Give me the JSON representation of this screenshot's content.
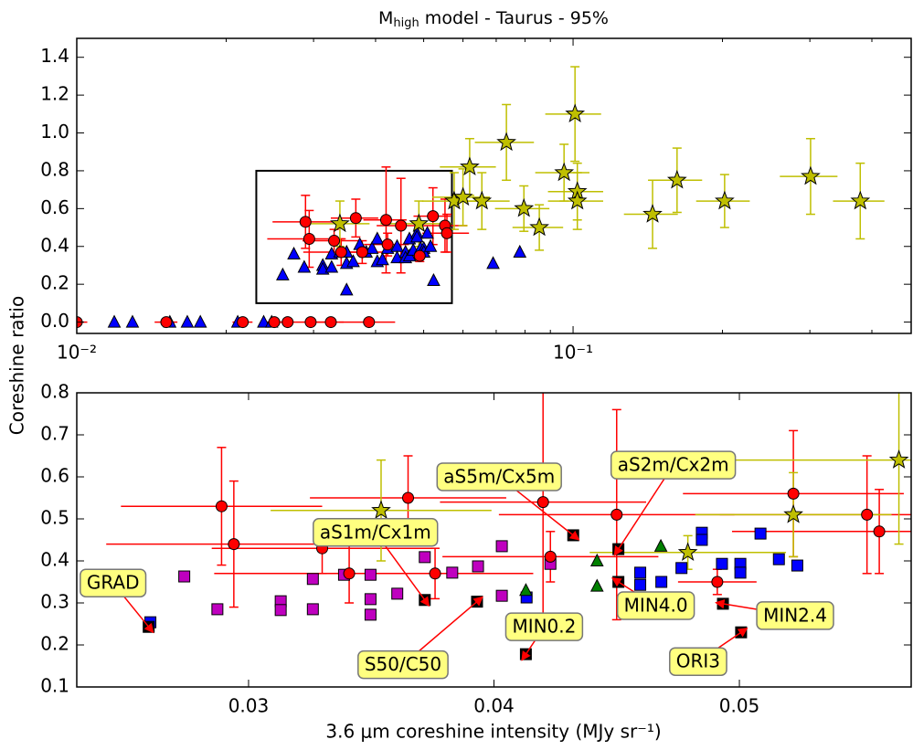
{
  "chart_data": [
    {
      "type": "scatter",
      "title": "M",
      "title_subscript": "high",
      "title_suffix": " model - Taurus - 95%",
      "ylabel": "Coreshine ratio",
      "log_x": true,
      "xlim": [
        0.01,
        0.48
      ],
      "ylim": [
        -0.06,
        1.5
      ],
      "xticks": [
        {
          "value": 0.01,
          "label": "10⁻²"
        },
        {
          "value": 0.1,
          "label": "10⁻¹"
        }
      ],
      "xminorticks": [
        0.02,
        0.03,
        0.04,
        0.05,
        0.06,
        0.07,
        0.08,
        0.09,
        0.2,
        0.3,
        0.4
      ],
      "yticks": [
        {
          "value": 0,
          "label": "0.0"
        },
        0.2,
        0.4,
        0.6,
        0.8,
        {
          "value": 1,
          "label": "1.0"
        },
        1.2,
        1.4
      ],
      "series": [
        {
          "marker": "triangle",
          "color": "#0000ff",
          "x": [
            0.0119,
            0.01295,
            0.0154,
            0.0167,
            0.01774,
            0.0211,
            0.0238,
            0.0247,
            0.026,
            0.02738,
            0.02873,
            0.03131,
            0.03131,
            0.03262,
            0.03262,
            0.03389,
            0.03497,
            0.03497,
            0.03497,
            0.03606,
            0.03718,
            0.0383,
            0.03935,
            0.04032,
            0.04032,
            0.0413,
            0.0423,
            0.0442,
            0.0442,
            0.04596,
            0.04596,
            0.04682,
            0.0468,
            0.04764,
            0.04847,
            0.04847,
            0.04929,
            0.05004,
            0.05004,
            0.05086,
            0.05161,
            0.05236,
            0.069,
            0.0781
          ],
          "values": [
            0,
            0,
            0,
            0,
            0,
            0,
            0,
            0,
            0.25,
            0.36,
            0.29,
            0.3,
            0.28,
            0.36,
            0.29,
            0.37,
            0.37,
            0.31,
            0.17,
            0.32,
            0.41,
            0.37,
            0.39,
            0.44,
            0.32,
            0.33,
            0.39,
            0.4,
            0.34,
            0.37,
            0.34,
            0.35,
            0.44,
            0.38,
            0.47,
            0.45,
            0.39,
            0.39,
            0.37,
            0.47,
            0.4,
            0.22,
            0.31,
            0.37
          ]
        },
        {
          "marker": "circle",
          "color": "#ff0000",
          "x": [
            0.01,
            0.01515,
            0.0216,
            0.025,
            0.0266,
            0.0296,
            0.0325,
            0.0388,
            0.0289,
            0.0294,
            0.033,
            0.0341,
            0.0365,
            0.0376,
            0.042,
            0.0423,
            0.045,
            0.0522,
            0.0552,
            0.0557,
            0.0491
          ],
          "values": [
            0,
            0,
            0,
            0,
            0,
            0,
            0,
            0,
            0.53,
            0.44,
            0.43,
            0.37,
            0.55,
            0.37,
            0.54,
            0.41,
            0.51,
            0.56,
            0.51,
            0.47,
            0.35
          ],
          "xerr": [
            0.0005,
            0.0008,
            0.001,
            0.001,
            0.001,
            0.002,
            0.002,
            0.005,
            0.0041,
            0.0052,
            0.0045,
            0.0055,
            0.004,
            0.004,
            0.0042,
            0.0044,
            0.0048,
            0.0045,
            0.006,
            0.006,
            0.0016
          ],
          "yerr": [
            0,
            0,
            0,
            0,
            0,
            0,
            0,
            0,
            0.14,
            0.15,
            0.06,
            0.07,
            0.1,
            0.06,
            0.28,
            0.06,
            0.25,
            0.15,
            0.14,
            0.1,
            0.03
          ]
        },
        {
          "marker": "star",
          "color": "#bfbf00",
          "x": [
            0.0339,
            0.0489,
            0.0576,
            0.06,
            0.0619,
            0.0655,
            0.0734,
            0.0796,
            0.0855,
            0.0959,
            0.1009,
            0.102,
            0.102,
            0.1446,
            0.162,
            0.202,
            0.301,
            0.379
          ],
          "values": [
            0.52,
            0.52,
            0.64,
            0.66,
            0.82,
            0.64,
            0.95,
            0.6,
            0.5,
            0.79,
            1.1,
            0.69,
            0.64,
            0.57,
            0.75,
            0.64,
            0.77,
            0.64
          ],
          "xerr": [
            0.005,
            0.008,
            0.008,
            0.008,
            0.008,
            0.009,
            0.01,
            0.01,
            0.01,
            0.012,
            0.013,
            0.013,
            0.013,
            0.018,
            0.02,
            0.025,
            0.04,
            0.045
          ],
          "yerr": [
            0.12,
            0.12,
            0.15,
            0.15,
            0.15,
            0.15,
            0.2,
            0.12,
            0.12,
            0.15,
            0.25,
            0.15,
            0.15,
            0.18,
            0.17,
            0.14,
            0.2,
            0.2
          ]
        }
      ]
    },
    {
      "type": "scatter",
      "xlabel": "3.6 μm coreshine intensity (MJy sr⁻¹)",
      "xlim": [
        0.023,
        0.057
      ],
      "ylim": [
        0.1,
        0.8
      ],
      "xticks": [
        0.03,
        0.04,
        0.05
      ],
      "yticks": [
        0.1,
        0.2,
        0.3,
        0.4,
        0.5,
        0.6,
        0.7,
        0.8
      ],
      "series": [
        {
          "marker": "square",
          "color": "#bf00bf",
          "x": [
            0.02738,
            0.02873,
            0.03131,
            0.03131,
            0.03262,
            0.03262,
            0.03389,
            0.03497,
            0.03497,
            0.03497,
            0.03606,
            0.03718,
            0.0383,
            0.03935,
            0.04032,
            0.04032,
            0.0423
          ],
          "values": [
            0.363,
            0.285,
            0.304,
            0.283,
            0.357,
            0.285,
            0.367,
            0.367,
            0.309,
            0.272,
            0.322,
            0.409,
            0.372,
            0.387,
            0.435,
            0.317,
            0.393
          ]
        },
        {
          "marker": "square",
          "color": "#0000ff",
          "x": [
            0.026,
            0.04133,
            0.04596,
            0.04596,
            0.04682,
            0.04764,
            0.04847,
            0.04847,
            0.04929,
            0.05004,
            0.05004,
            0.05086,
            0.05161,
            0.05236
          ],
          "values": [
            0.254,
            0.313,
            0.372,
            0.343,
            0.35,
            0.383,
            0.467,
            0.45,
            0.393,
            0.393,
            0.372,
            0.465,
            0.404,
            0.389
          ]
        },
        {
          "marker": "triangle",
          "color": "#008000",
          "x": [
            0.0413,
            0.0442,
            0.0442,
            0.0468
          ],
          "values": [
            0.33,
            0.4,
            0.34,
            0.435
          ]
        },
        {
          "marker": "circle",
          "color": "#ff0000",
          "x": [
            0.0289,
            0.0294,
            0.033,
            0.0341,
            0.0365,
            0.0376,
            0.042,
            0.0423,
            0.045,
            0.0522,
            0.0552,
            0.0557,
            0.0491
          ],
          "values": [
            0.53,
            0.44,
            0.43,
            0.37,
            0.55,
            0.37,
            0.54,
            0.41,
            0.51,
            0.56,
            0.51,
            0.47,
            0.35
          ],
          "xerr": [
            0.0041,
            0.0052,
            0.0045,
            0.0055,
            0.004,
            0.004,
            0.0042,
            0.0044,
            0.0048,
            0.0045,
            0.006,
            0.006,
            0.0016
          ],
          "yerr": [
            0.14,
            0.15,
            0.06,
            0.07,
            0.1,
            0.06,
            0.28,
            0.06,
            0.25,
            0.15,
            0.14,
            0.1,
            0.03
          ]
        },
        {
          "marker": "star",
          "color": "#bfbf00",
          "x": [
            0.0354,
            0.0479,
            0.0522,
            0.0565
          ],
          "values": [
            0.52,
            0.42,
            0.51,
            0.64
          ],
          "xerr": [
            0.0045,
            0.004,
            0.004,
            0.008
          ],
          "yerr": [
            0.12,
            0.04,
            0.1,
            0.2
          ]
        },
        {
          "marker": "square",
          "color": "#000000",
          "x": [
            0.02593,
            0.03718,
            0.03931,
            0.0413,
            0.04323,
            0.04507,
            0.04507,
            0.04933,
            0.05007
          ],
          "values": [
            0.243,
            0.307,
            0.303,
            0.178,
            0.461,
            0.428,
            0.35,
            0.298,
            0.23
          ],
          "point_labels": [
            "GRAD",
            "aS1m/Cx1m",
            "S50/C50",
            "MIN0.2",
            "aS5m/Cx5m",
            "aS2m/Cx2m",
            "MIN4.0",
            "MIN2.4",
            "ORI3"
          ]
        }
      ]
    }
  ]
}
